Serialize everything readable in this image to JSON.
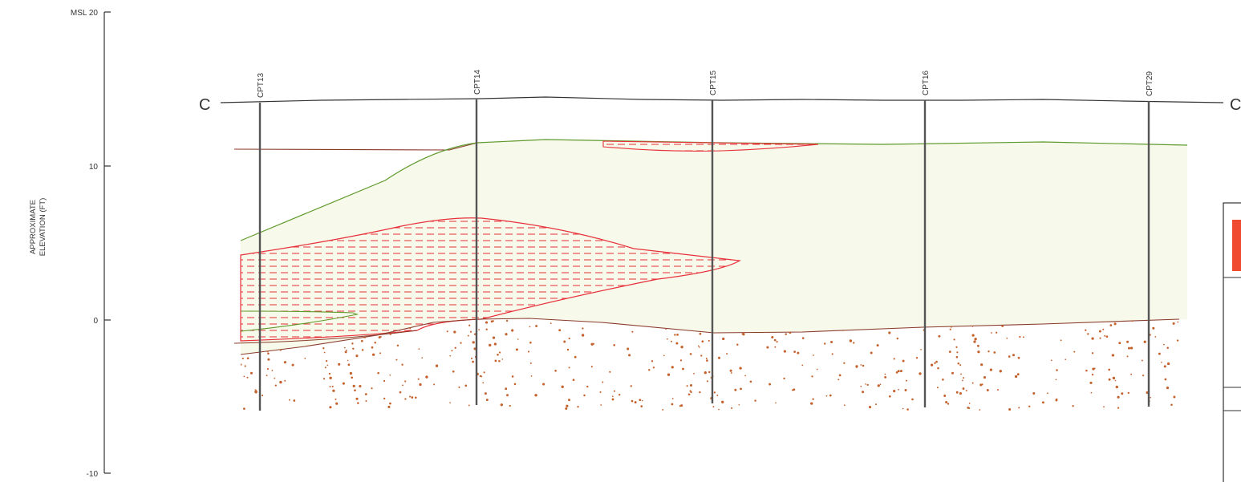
{
  "axis": {
    "label_line1": "APPROXIMATE",
    "label_line2": "ELEVATION (FT)",
    "ticks": [
      {
        "value": 20,
        "label": "MSL 20"
      },
      {
        "value": 10,
        "label": "10"
      },
      {
        "value": 0,
        "label": "0"
      },
      {
        "value": -10,
        "label": "-10"
      }
    ]
  },
  "section": {
    "start_label": "C",
    "end_label": "C"
  },
  "borings": [
    {
      "id": "CPT13",
      "name": "boring-cpt13"
    },
    {
      "id": "CPT14",
      "name": "boring-cpt14"
    },
    {
      "id": "CPT15",
      "name": "boring-cpt15"
    },
    {
      "id": "CPT16",
      "name": "boring-cpt16"
    },
    {
      "id": "CPT29",
      "name": "boring-cpt29"
    }
  ],
  "colors": {
    "ground_line": "#333333",
    "sand_fill": "#f7f9ea",
    "sand_outline": "#5f9a2c",
    "clay_hatch": "#e8303a",
    "gravel_dots": "#c4622d",
    "contact_line": "#8a3a2a",
    "boring_line": "#555555",
    "legend_swatch": "#f04a30"
  }
}
